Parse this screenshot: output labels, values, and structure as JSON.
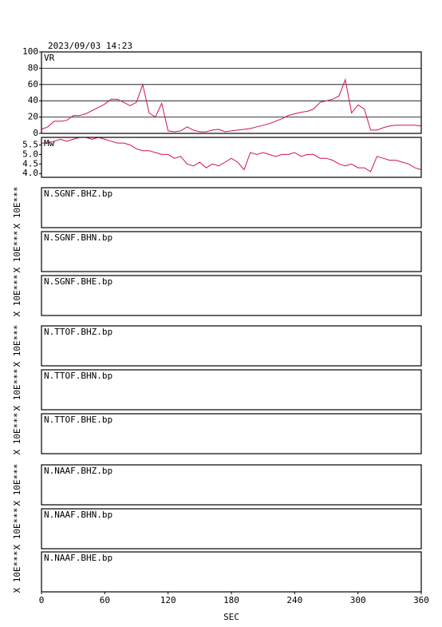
{
  "title": "2023/09/03  14:23",
  "x_axis": {
    "label": "SEC",
    "xlim": [
      0,
      360
    ],
    "xticks": [
      0,
      60,
      120,
      180,
      240,
      300,
      360
    ]
  },
  "chart_data": [
    {
      "type": "line",
      "label": "VR",
      "color": "#d0124e",
      "grid": true,
      "ylim": [
        0,
        100
      ],
      "yticks": [
        0,
        20,
        40,
        60,
        80,
        100
      ],
      "x": [
        0,
        6,
        12,
        18,
        24,
        30,
        36,
        42,
        48,
        54,
        60,
        66,
        72,
        78,
        84,
        90,
        96,
        102,
        108,
        114,
        120,
        126,
        132,
        138,
        144,
        150,
        156,
        162,
        168,
        174,
        180,
        186,
        192,
        198,
        204,
        210,
        216,
        222,
        228,
        234,
        240,
        246,
        252,
        258,
        264,
        270,
        276,
        282,
        288,
        294,
        300,
        306,
        312,
        318,
        324,
        330,
        336,
        342,
        348,
        354,
        360
      ],
      "values": [
        5,
        8,
        15,
        15,
        16,
        22,
        22,
        24,
        28,
        32,
        36,
        42,
        42,
        38,
        34,
        38,
        60,
        25,
        20,
        37,
        3,
        2,
        3,
        8,
        4,
        2,
        2,
        4,
        5,
        2,
        3,
        4,
        5,
        6,
        8,
        10,
        12,
        15,
        18,
        22,
        24,
        26,
        27,
        30,
        38,
        40,
        42,
        46,
        66,
        25,
        35,
        30,
        4,
        4,
        7,
        9,
        10,
        10,
        10,
        10,
        9
      ]
    },
    {
      "type": "line",
      "label": "Mw",
      "color": "#d0124e",
      "grid": false,
      "ylim": [
        3.8,
        5.9
      ],
      "yticks": [
        {
          "value": 4,
          "label": "4.0"
        },
        4.5,
        {
          "value": 5,
          "label": "5.0"
        },
        5.5
      ],
      "x": [
        0,
        6,
        12,
        18,
        24,
        30,
        36,
        42,
        48,
        54,
        60,
        66,
        72,
        78,
        84,
        90,
        96,
        102,
        108,
        114,
        120,
        126,
        132,
        138,
        144,
        150,
        156,
        162,
        168,
        174,
        180,
        186,
        192,
        198,
        204,
        210,
        216,
        222,
        228,
        234,
        240,
        246,
        252,
        258,
        264,
        270,
        276,
        282,
        288,
        294,
        300,
        306,
        312,
        318,
        324,
        330,
        336,
        342,
        348,
        354,
        360
      ],
      "values": [
        5.6,
        5.6,
        5.7,
        5.8,
        5.7,
        5.8,
        5.9,
        5.9,
        5.8,
        5.9,
        5.8,
        5.7,
        5.6,
        5.6,
        5.5,
        5.3,
        5.2,
        5.2,
        5.1,
        5.0,
        5.0,
        4.8,
        4.9,
        4.5,
        4.4,
        4.6,
        4.3,
        4.5,
        4.4,
        4.6,
        4.8,
        4.6,
        4.2,
        5.1,
        5.0,
        5.1,
        5.0,
        4.9,
        5.0,
        5.0,
        5.1,
        4.9,
        5.0,
        5.0,
        4.8,
        4.8,
        4.7,
        4.5,
        4.4,
        4.5,
        4.3,
        4.3,
        4.1,
        4.9,
        4.8,
        4.7,
        4.7,
        4.6,
        4.5,
        4.3,
        4.2
      ]
    },
    {
      "type": "waveform",
      "label": "N.SGNF.BHZ.bp",
      "ylabel": "X 10E***"
    },
    {
      "type": "waveform",
      "label": "N.SGNF.BHN.bp",
      "ylabel": "X 10E***"
    },
    {
      "type": "waveform",
      "label": "N.SGNF.BHE.bp",
      "ylabel": "X 10E***"
    },
    {
      "type": "waveform",
      "label": "N.TTOF.BHZ.bp",
      "ylabel": "X 10E***"
    },
    {
      "type": "waveform",
      "label": "N.TTOF.BHN.bp",
      "ylabel": "X 10E***"
    },
    {
      "type": "waveform",
      "label": "N.TTOF.BHE.bp",
      "ylabel": "X 10E***"
    },
    {
      "type": "waveform",
      "label": "N.NAAF.BHZ.bp",
      "ylabel": "X 10E***"
    },
    {
      "type": "waveform",
      "label": "N.NAAF.BHN.bp",
      "ylabel": "X 10E***"
    },
    {
      "type": "waveform",
      "label": "N.NAAF.BHE.bp",
      "ylabel": "X 10E***"
    }
  ]
}
